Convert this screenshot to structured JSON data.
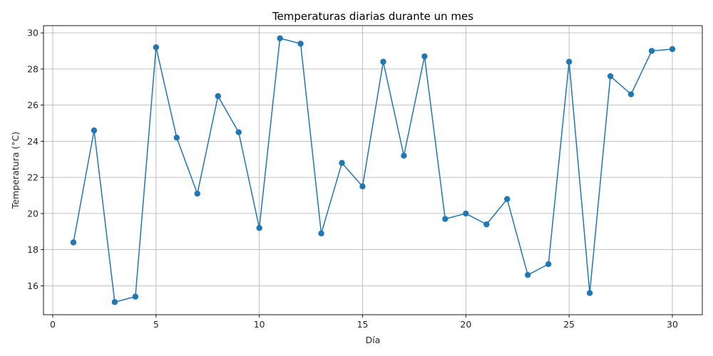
{
  "chart_data": {
    "type": "line",
    "title": "Temperaturas diarias durante un mes",
    "xlabel": "Día",
    "ylabel": "Temperatura (°C)",
    "xlim": [
      -0.45,
      31.45
    ],
    "ylim": [
      14.4,
      30.4
    ],
    "xticks": [
      0,
      5,
      10,
      15,
      20,
      25,
      30
    ],
    "yticks": [
      16,
      18,
      20,
      22,
      24,
      26,
      28,
      30
    ],
    "grid": true,
    "marker": "circle",
    "color": "#1f77b4",
    "series": [
      {
        "x": [
          1,
          2,
          3,
          4,
          5,
          6,
          7,
          8,
          9,
          10,
          11,
          12,
          13,
          14,
          15,
          16,
          17,
          18,
          19,
          20,
          21,
          22,
          23,
          24,
          25,
          26,
          27,
          28,
          29,
          30
        ],
        "values": [
          18.4,
          24.6,
          15.1,
          15.4,
          29.2,
          24.2,
          21.1,
          26.5,
          24.5,
          19.2,
          29.7,
          29.4,
          18.9,
          22.8,
          21.5,
          28.4,
          23.2,
          28.7,
          19.7,
          20.0,
          19.4,
          20.8,
          16.6,
          17.2,
          28.4,
          15.6,
          27.6,
          26.6,
          29.0,
          29.1
        ]
      }
    ]
  }
}
